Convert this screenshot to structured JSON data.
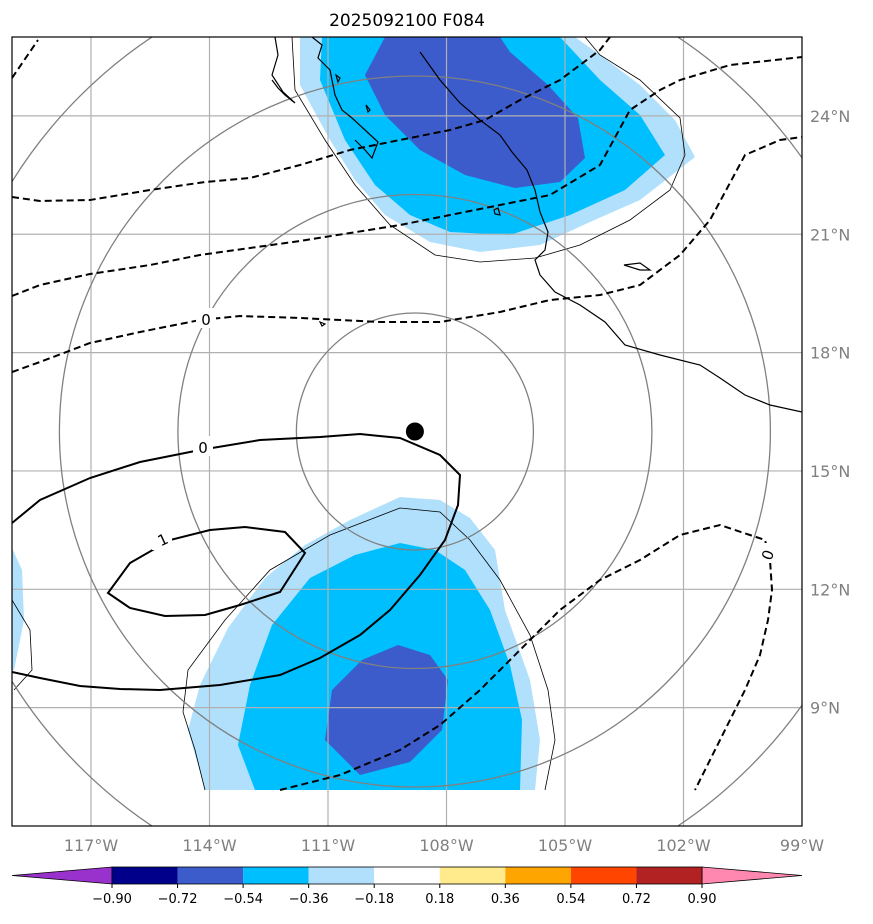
{
  "title": "2025092100 F084",
  "map": {
    "lon_range": [
      -119,
      -99
    ],
    "lat_range": [
      6,
      26
    ],
    "gridlines": true,
    "lon_ticks": [
      {
        "value": -117,
        "label": "117°W"
      },
      {
        "value": -114,
        "label": "114°W"
      },
      {
        "value": -111,
        "label": "111°W"
      },
      {
        "value": -108,
        "label": "108°W"
      },
      {
        "value": -105,
        "label": "105°W"
      },
      {
        "value": -102,
        "label": "102°W"
      },
      {
        "value": -99,
        "label": "99°W"
      }
    ],
    "lat_ticks": [
      {
        "value": 9,
        "label": "9°N"
      },
      {
        "value": 12,
        "label": "12°N"
      },
      {
        "value": 15,
        "label": "15°N"
      },
      {
        "value": 18,
        "label": "18°N"
      },
      {
        "value": 21,
        "label": "21°N"
      },
      {
        "value": 24,
        "label": "24°N"
      }
    ],
    "storm_center": {
      "lon": -108.8,
      "lat": 16.0
    },
    "range_rings_deg": [
      3,
      6,
      9,
      12
    ],
    "contour_labels": [
      "0",
      "0",
      "1",
      "0"
    ],
    "colors": {
      "shade_weak": "#b0e0fc",
      "shade_mid": "#00bfff",
      "shade_strong": "#3c5ccc",
      "coast": "#000000",
      "grid": "#b0b0b0",
      "ring": "#808080"
    }
  },
  "colorbar": {
    "labels": [
      "−0.90",
      "−0.72",
      "−0.54",
      "−0.36",
      "−0.18",
      "0.18",
      "0.36",
      "0.54",
      "0.72",
      "0.90"
    ],
    "colors": [
      "#9932cc",
      "#00008b",
      "#3c5ccc",
      "#00bfff",
      "#b0e0fc",
      "#ffffff",
      "#ffeb8b",
      "#ffa500",
      "#ff4500",
      "#b22222",
      "#ff88b0"
    ]
  }
}
